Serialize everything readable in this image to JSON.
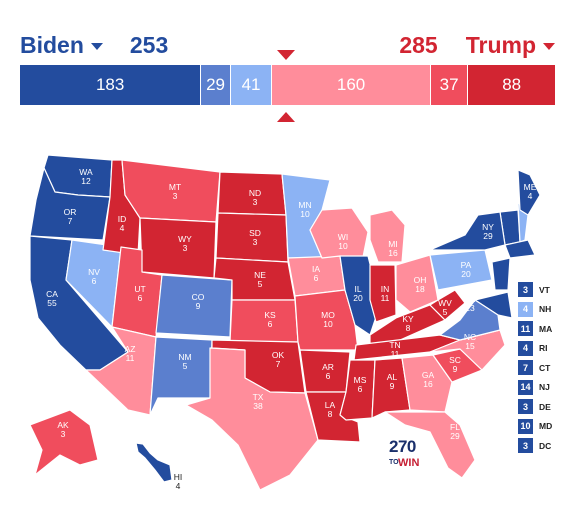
{
  "header": {
    "dem": {
      "name": "Biden",
      "total": "253",
      "color": "#234c9e"
    },
    "rep": {
      "name": "Trump",
      "total": "285",
      "color": "#d22532"
    }
  },
  "bar": [
    {
      "value": "183",
      "color": "#234c9e"
    },
    {
      "value": "29",
      "color": "#5b7fce"
    },
    {
      "value": "41",
      "color": "#8cb3f4"
    },
    {
      "value": "160",
      "color": "#ff8d9b"
    },
    {
      "value": "37",
      "color": "#f04d5d"
    },
    {
      "value": "88",
      "color": "#d22532"
    }
  ],
  "palette": {
    "safe_d": "#234c9e",
    "likely_d": "#5b7fce",
    "lean_d": "#8cb3f4",
    "lean_r": "#ff8d9b",
    "likely_r": "#f04d5d",
    "safe_r": "#d22532"
  },
  "states": [
    {
      "abbr": "WA",
      "ev": "12"
    },
    {
      "abbr": "OR",
      "ev": "7"
    },
    {
      "abbr": "CA",
      "ev": "55"
    },
    {
      "abbr": "NV",
      "ev": "6"
    },
    {
      "abbr": "ID",
      "ev": "4"
    },
    {
      "abbr": "MT",
      "ev": "3"
    },
    {
      "abbr": "WY",
      "ev": "3"
    },
    {
      "abbr": "UT",
      "ev": "6"
    },
    {
      "abbr": "AZ",
      "ev": "11"
    },
    {
      "abbr": "CO",
      "ev": "9"
    },
    {
      "abbr": "NM",
      "ev": "5"
    },
    {
      "abbr": "ND",
      "ev": "3"
    },
    {
      "abbr": "SD",
      "ev": "3"
    },
    {
      "abbr": "NE",
      "ev": "5"
    },
    {
      "abbr": "KS",
      "ev": "6"
    },
    {
      "abbr": "OK",
      "ev": "7"
    },
    {
      "abbr": "TX",
      "ev": "38"
    },
    {
      "abbr": "MN",
      "ev": "10"
    },
    {
      "abbr": "IA",
      "ev": "6"
    },
    {
      "abbr": "MO",
      "ev": "10"
    },
    {
      "abbr": "AR",
      "ev": "6"
    },
    {
      "abbr": "LA",
      "ev": "8"
    },
    {
      "abbr": "WI",
      "ev": "10"
    },
    {
      "abbr": "IL",
      "ev": "20"
    },
    {
      "abbr": "MI",
      "ev": "16"
    },
    {
      "abbr": "IN",
      "ev": "11"
    },
    {
      "abbr": "OH",
      "ev": "18"
    },
    {
      "abbr": "KY",
      "ev": "8"
    },
    {
      "abbr": "TN",
      "ev": "11"
    },
    {
      "abbr": "MS",
      "ev": "6"
    },
    {
      "abbr": "AL",
      "ev": "9"
    },
    {
      "abbr": "GA",
      "ev": "16"
    },
    {
      "abbr": "FL",
      "ev": "29"
    },
    {
      "abbr": "SC",
      "ev": "9"
    },
    {
      "abbr": "NC",
      "ev": "15"
    },
    {
      "abbr": "VA",
      "ev": "13"
    },
    {
      "abbr": "WV",
      "ev": "5"
    },
    {
      "abbr": "PA",
      "ev": "20"
    },
    {
      "abbr": "NY",
      "ev": "29"
    },
    {
      "abbr": "ME",
      "ev": "4"
    },
    {
      "abbr": "AK",
      "ev": "3"
    },
    {
      "abbr": "HI",
      "ev": "4"
    }
  ],
  "small_states": [
    {
      "ev": "3",
      "abbr": "VT",
      "color": "#234c9e"
    },
    {
      "ev": "4",
      "abbr": "NH",
      "color": "#8cb3f4"
    },
    {
      "ev": "11",
      "abbr": "MA",
      "color": "#234c9e"
    },
    {
      "ev": "4",
      "abbr": "RI",
      "color": "#234c9e"
    },
    {
      "ev": "7",
      "abbr": "CT",
      "color": "#234c9e"
    },
    {
      "ev": "14",
      "abbr": "NJ",
      "color": "#234c9e"
    },
    {
      "ev": "3",
      "abbr": "DE",
      "color": "#234c9e"
    },
    {
      "ev": "10",
      "abbr": "MD",
      "color": "#234c9e"
    },
    {
      "ev": "3",
      "abbr": "DC",
      "color": "#234c9e"
    }
  ],
  "logo": {
    "number": "270",
    "to": "TO",
    "win": "WIN"
  }
}
